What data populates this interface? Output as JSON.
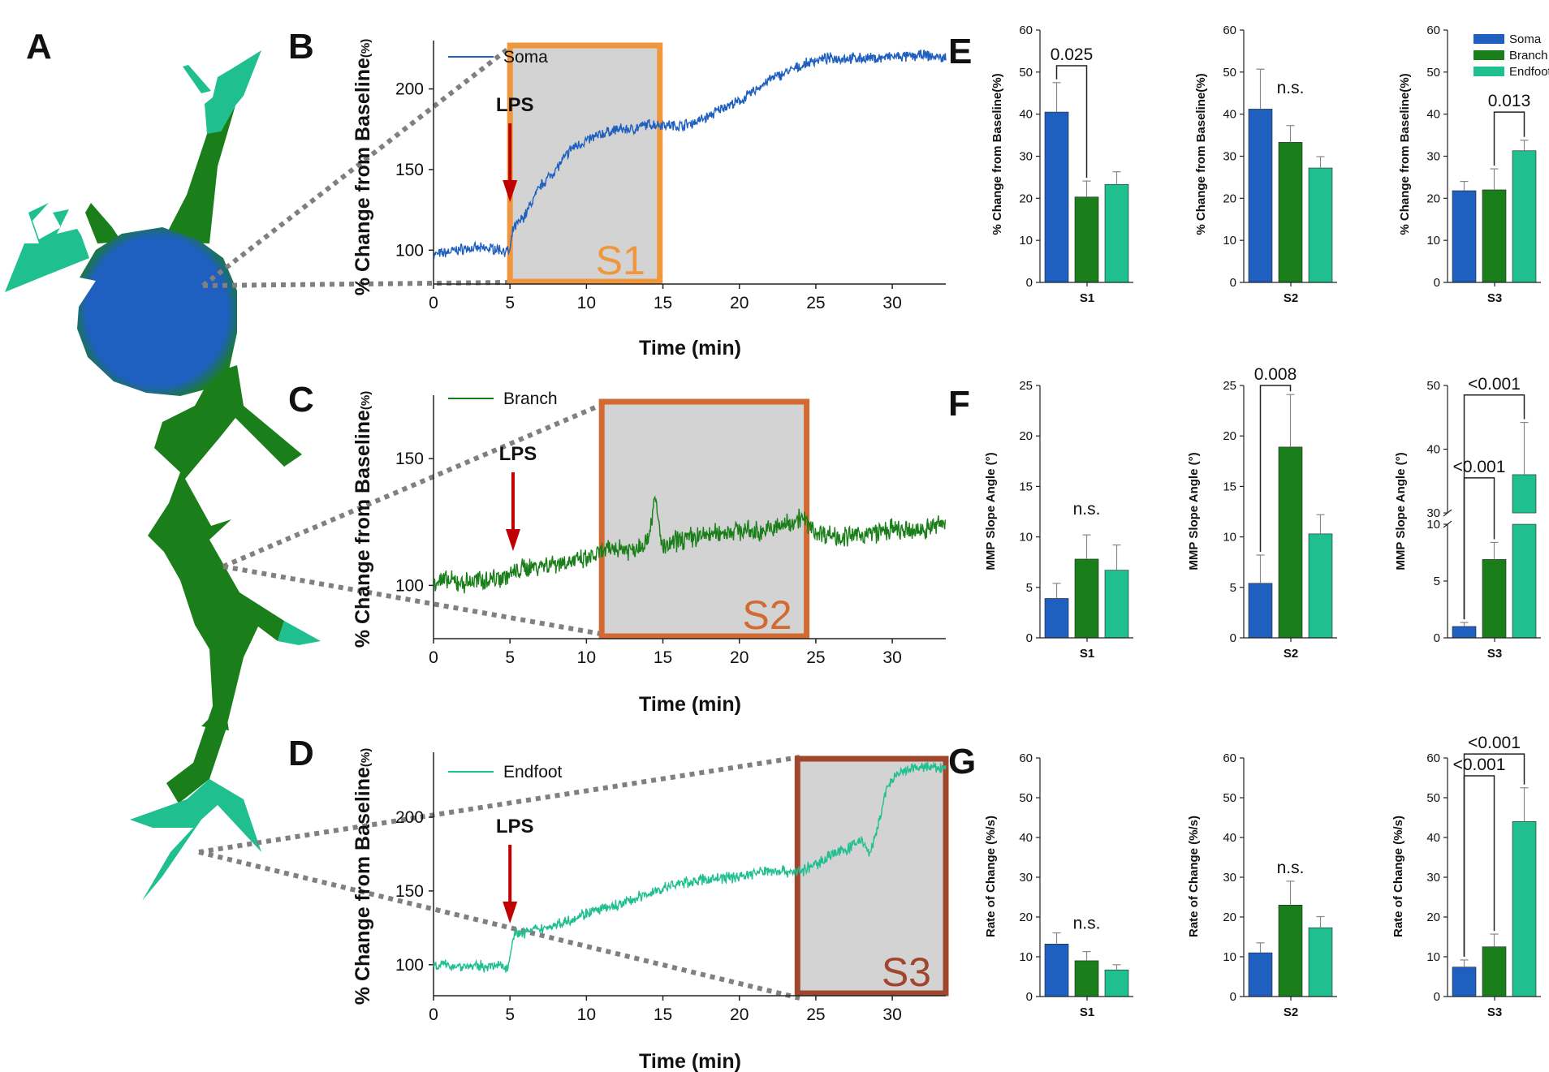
{
  "colors": {
    "soma": "#1f5fbf",
    "branch": "#1a7f1a",
    "endfoot": "#1fbf8f",
    "lps_arrow": "#c00000",
    "s1_box": "#f0963c",
    "s2_box": "#d26a32",
    "s3_box": "#a0462d",
    "shade": "#d3d3d3",
    "connector": "#808080"
  },
  "panels": {
    "A": "A",
    "B": "B",
    "C": "C",
    "D": "D",
    "E": "E",
    "F": "F",
    "G": "G"
  },
  "chart_data": [
    {
      "id": "B",
      "type": "line",
      "title": "",
      "xlabel": "Time (min)",
      "ylabel": "% Change from Baseline",
      "ylabel_unit": "(%)",
      "xlim": [
        0,
        33.5
      ],
      "ylim": [
        79,
        230
      ],
      "xticks": [
        0,
        5,
        10,
        15,
        20,
        25,
        30
      ],
      "yticks": [
        100,
        150,
        200
      ],
      "series": [
        {
          "name": "Soma",
          "color_key": "soma",
          "x": [
            0,
            2,
            4,
            5,
            5.2,
            6,
            7,
            8,
            9,
            10,
            11,
            12,
            13,
            14,
            15,
            16,
            17,
            18,
            19,
            20,
            21,
            22,
            23,
            24,
            25,
            26,
            27,
            28,
            29,
            30,
            31,
            32,
            33.5
          ],
          "y": [
            97,
            101,
            101,
            99,
            113,
            122,
            140,
            150,
            163,
            168,
            172,
            175,
            175,
            178,
            178,
            177,
            179,
            183,
            189,
            192,
            199,
            206,
            210,
            214,
            218,
            219,
            219,
            219,
            219,
            220,
            220,
            221,
            219
          ]
        }
      ],
      "lps": {
        "label": "LPS",
        "x": 5
      },
      "stage": {
        "label": "S1",
        "x0": 5,
        "x1": 14.8
      }
    },
    {
      "id": "C",
      "type": "line",
      "title": "",
      "xlabel": "Time (min)",
      "ylabel": "% Change from Baseline",
      "ylabel_unit": "(%)",
      "xlim": [
        0,
        33.5
      ],
      "ylim": [
        79,
        175
      ],
      "xticks": [
        0,
        5,
        10,
        15,
        20,
        25,
        30
      ],
      "yticks": [
        100,
        150
      ],
      "series": [
        {
          "name": "Branch",
          "color_key": "branch",
          "x": [
            0,
            2,
            4,
            5,
            6,
            8,
            10,
            11,
            12,
            13,
            14,
            14.5,
            15,
            16,
            17,
            18,
            19,
            20,
            21,
            22,
            23,
            24,
            25,
            26,
            27,
            28,
            29,
            30,
            31,
            32,
            33,
            33.5
          ],
          "y": [
            102,
            101,
            103,
            104,
            107,
            109,
            110,
            113,
            115,
            114,
            118,
            134,
            114,
            118,
            119,
            120,
            121,
            122,
            121,
            122,
            124,
            127,
            121,
            120,
            119,
            120,
            121,
            122,
            121,
            122,
            124,
            125
          ]
        }
      ],
      "lps": {
        "label": "LPS",
        "x": 5.2
      },
      "stage": {
        "label": "S2",
        "x0": 11,
        "x1": 24.4
      }
    },
    {
      "id": "D",
      "type": "line",
      "title": "",
      "xlabel": "Time (min)",
      "ylabel": "% Change from Baseline",
      "ylabel_unit": "(%)",
      "xlim": [
        0,
        33.5
      ],
      "ylim": [
        79,
        244
      ],
      "xticks": [
        0,
        5,
        10,
        15,
        20,
        25,
        30
      ],
      "yticks": [
        100,
        150,
        200
      ],
      "series": [
        {
          "name": "Endfoot",
          "color_key": "endfoot",
          "x": [
            0,
            2,
            4,
            4.9,
            5.2,
            6,
            8,
            10,
            12,
            14,
            16,
            18,
            20,
            22,
            24,
            25,
            26,
            27,
            28,
            28.5,
            29,
            29.5,
            30,
            31,
            32,
            33.5
          ],
          "y": [
            100,
            99,
            99,
            99,
            120,
            122,
            127,
            135,
            140,
            148,
            155,
            158,
            160,
            164,
            163,
            168,
            175,
            178,
            185,
            175,
            190,
            215,
            226,
            232,
            234,
            233
          ]
        }
      ],
      "lps": {
        "label": "LPS",
        "x": 5
      },
      "stage": {
        "label": "S3",
        "x0": 23.8,
        "x1": 33.5
      }
    },
    {
      "id": "E-S1",
      "type": "bar",
      "category": "S1",
      "ylabel": "% Change from Baseline",
      "ylabel_unit": "(%)",
      "ylim": [
        0,
        60
      ],
      "yticks": [
        0,
        10,
        20,
        30,
        40,
        50,
        60
      ],
      "series": [
        {
          "name": "Soma",
          "value": 40.5,
          "err": 7.0
        },
        {
          "name": "Branch",
          "value": 20.3,
          "err": 3.8
        },
        {
          "name": "Endfoot",
          "value": 23.3,
          "err": 3.0
        }
      ],
      "annotations": [
        {
          "text": "0.025",
          "from": 0,
          "to": 1,
          "y": 51.5
        }
      ]
    },
    {
      "id": "E-S2",
      "type": "bar",
      "category": "S2",
      "ylabel": "% Change from Baseline",
      "ylabel_unit": "(%)",
      "ylim": [
        0,
        60
      ],
      "yticks": [
        0,
        10,
        20,
        30,
        40,
        50,
        60
      ],
      "series": [
        {
          "name": "Soma",
          "value": 41.2,
          "err": 9.5
        },
        {
          "name": "Branch",
          "value": 33.3,
          "err": 4.0
        },
        {
          "name": "Endfoot",
          "value": 27.2,
          "err": 2.7
        }
      ],
      "annotations": [
        {
          "text": "n.s.",
          "y": 45
        }
      ]
    },
    {
      "id": "E-S3",
      "type": "bar",
      "category": "S3",
      "ylabel": "% Change from Baseline",
      "ylabel_unit": "(%)",
      "ylim": [
        0,
        60
      ],
      "yticks": [
        0,
        10,
        20,
        30,
        40,
        50,
        60
      ],
      "series": [
        {
          "name": "Soma",
          "value": 21.8,
          "err": 2.2
        },
        {
          "name": "Branch",
          "value": 22.0,
          "err": 5.0
        },
        {
          "name": "Endfoot",
          "value": 31.3,
          "err": 2.5
        }
      ],
      "annotations": [
        {
          "text": "0.013",
          "from": 1,
          "to": 2,
          "y": 40.5
        }
      ],
      "legend": [
        "Soma",
        "Branch",
        "Endfoot"
      ]
    },
    {
      "id": "F-S1",
      "type": "bar",
      "category": "S1",
      "ylabel": "MMP Slope Angle (°)",
      "ylim": [
        0,
        25
      ],
      "yticks": [
        0,
        5,
        10,
        15,
        20,
        25
      ],
      "series": [
        {
          "name": "Soma",
          "value": 3.9,
          "err": 1.5
        },
        {
          "name": "Branch",
          "value": 7.8,
          "err": 2.4
        },
        {
          "name": "Endfoot",
          "value": 6.7,
          "err": 2.5
        }
      ],
      "annotations": [
        {
          "text": "n.s.",
          "y": 12.2
        }
      ]
    },
    {
      "id": "F-S2",
      "type": "bar",
      "category": "S2",
      "ylabel": "MMP Slope Angle (°)",
      "ylim": [
        0,
        25
      ],
      "yticks": [
        0,
        5,
        10,
        15,
        20,
        25
      ],
      "series": [
        {
          "name": "Soma",
          "value": 5.4,
          "err": 2.8
        },
        {
          "name": "Branch",
          "value": 18.9,
          "err": 5.2
        },
        {
          "name": "Endfoot",
          "value": 10.3,
          "err": 1.9
        }
      ],
      "annotations": [
        {
          "text": "0.008",
          "from": 0,
          "to": 1,
          "y": 25
        }
      ]
    },
    {
      "id": "F-S3",
      "type": "bar",
      "category": "S3",
      "broken_axis": true,
      "ylabel": "MMP Slope Angle (°)",
      "ylim_lower": [
        0,
        10
      ],
      "ylim_upper": [
        30,
        50
      ],
      "yticks_lower": [
        0,
        5,
        10
      ],
      "yticks_upper": [
        30,
        40,
        50
      ],
      "series": [
        {
          "name": "Soma",
          "value": 1.0,
          "err": 0.35
        },
        {
          "name": "Branch",
          "value": 6.9,
          "err": 1.5
        },
        {
          "name": "Endfoot",
          "value": 36.0,
          "err": 8.2
        }
      ],
      "annotations": [
        {
          "text": "<0.001",
          "from": 0,
          "to": 2,
          "y": 48.5
        },
        {
          "text": "<0.001",
          "from": 0,
          "to": 1,
          "y": 35.5
        }
      ]
    },
    {
      "id": "G-S1",
      "type": "bar",
      "category": "S1",
      "ylabel": "Rate of Change (%/s)",
      "ylim": [
        0,
        60
      ],
      "yticks": [
        0,
        10,
        20,
        30,
        40,
        50,
        60
      ],
      "series": [
        {
          "name": "Soma",
          "value": 13.2,
          "err": 2.8
        },
        {
          "name": "Branch",
          "value": 9.0,
          "err": 2.3
        },
        {
          "name": "Endfoot",
          "value": 6.7,
          "err": 1.3
        }
      ],
      "annotations": [
        {
          "text": "n.s.",
          "y": 17
        }
      ]
    },
    {
      "id": "G-S2",
      "type": "bar",
      "category": "S2",
      "ylabel": "Rate of Change (%/s)",
      "ylim": [
        0,
        60
      ],
      "yticks": [
        0,
        10,
        20,
        30,
        40,
        50,
        60
      ],
      "series": [
        {
          "name": "Soma",
          "value": 11.0,
          "err": 2.5
        },
        {
          "name": "Branch",
          "value": 23.0,
          "err": 6.0
        },
        {
          "name": "Endfoot",
          "value": 17.3,
          "err": 2.8
        }
      ],
      "annotations": [
        {
          "text": "n.s.",
          "y": 31
        }
      ]
    },
    {
      "id": "G-S3",
      "type": "bar",
      "category": "S3",
      "ylabel": "Rate of Change (%/s)",
      "ylim": [
        0,
        60
      ],
      "yticks": [
        0,
        10,
        20,
        30,
        40,
        50,
        60
      ],
      "series": [
        {
          "name": "Soma",
          "value": 7.4,
          "err": 1.8
        },
        {
          "name": "Branch",
          "value": 12.5,
          "err": 3.2
        },
        {
          "name": "Endfoot",
          "value": 44.0,
          "err": 8.5
        }
      ],
      "annotations": [
        {
          "text": "<0.001",
          "from": 0,
          "to": 2,
          "y": 61
        },
        {
          "text": "<0.001",
          "from": 0,
          "to": 1,
          "y": 55.5
        }
      ]
    }
  ]
}
